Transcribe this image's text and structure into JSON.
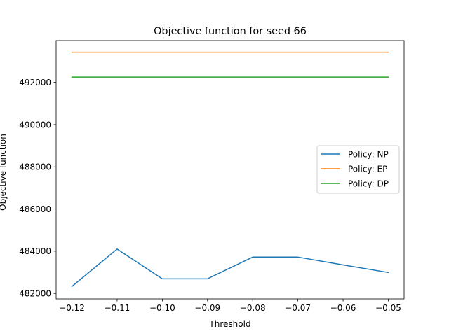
{
  "chart_data": {
    "type": "line",
    "title": "Objective function for seed 66",
    "xlabel": "Threshold",
    "ylabel": "Objective function",
    "x": [
      -0.12,
      -0.11,
      -0.1,
      -0.09,
      -0.08,
      -0.07,
      -0.06,
      -0.05
    ],
    "xticks": [
      -0.12,
      -0.11,
      -0.1,
      -0.09,
      -0.08,
      -0.07,
      -0.06,
      -0.05
    ],
    "xtick_labels": [
      "−0.12",
      "−0.11",
      "−0.10",
      "−0.09",
      "−0.08",
      "−0.07",
      "−0.06",
      "−0.05"
    ],
    "yticks": [
      482000,
      484000,
      486000,
      488000,
      490000,
      492000
    ],
    "ytick_labels": [
      "482000",
      "484000",
      "486000",
      "488000",
      "490000",
      "492000"
    ],
    "xlim": [
      -0.1235,
      -0.0465
    ],
    "ylim": [
      481740,
      493980
    ],
    "grid": false,
    "legend_position": "center right",
    "series": [
      {
        "name": "Policy: NP",
        "color": "#1f77b4",
        "values": [
          482330,
          484100,
          482690,
          482690,
          483720,
          483720,
          483350,
          482990
        ]
      },
      {
        "name": "Policy: EP",
        "color": "#ff7f0e",
        "values": [
          493430,
          493430,
          493430,
          493430,
          493430,
          493430,
          493430,
          493430
        ]
      },
      {
        "name": "Policy: DP",
        "color": "#2ca02c",
        "values": [
          492250,
          492250,
          492250,
          492250,
          492250,
          492250,
          492250,
          492250
        ]
      }
    ]
  }
}
